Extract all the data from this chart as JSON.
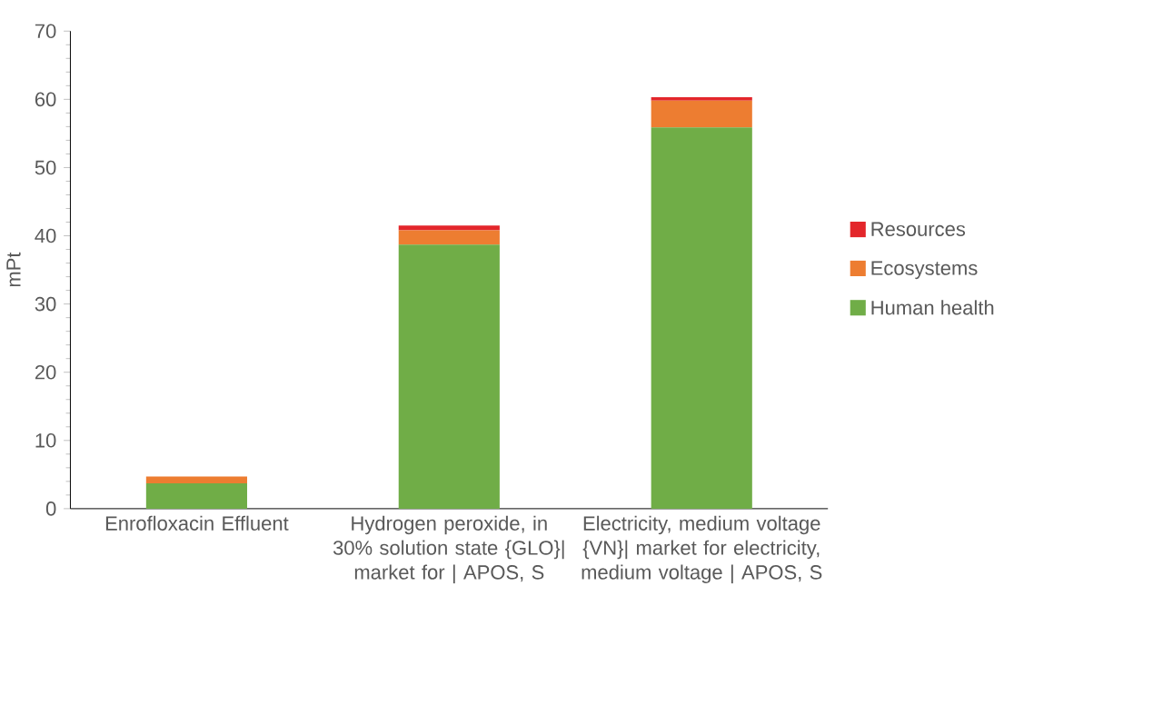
{
  "chart_data": {
    "type": "bar",
    "stacked": true,
    "ylabel": "mPt",
    "categories": [
      "Enrofloxacin Effluent",
      "Hydrogen peroxide, in 30% solution state {GLO}| market for | APOS, S",
      "Electricity, medium voltage {VN}| market for electricity, medium voltage | APOS, S"
    ],
    "series": [
      {
        "name": "Human health",
        "color": "#70ad47",
        "values": [
          3.7,
          38.7,
          55.9
        ]
      },
      {
        "name": "Ecosystems",
        "color": "#ed7d31",
        "values": [
          1.0,
          2.1,
          3.9
        ]
      },
      {
        "name": "Resources",
        "color": "#e3262b",
        "values": [
          0.0,
          0.7,
          0.5
        ]
      }
    ],
    "ylim": [
      0,
      70
    ],
    "yticks": [
      0,
      10,
      20,
      30,
      40,
      50,
      60,
      70
    ],
    "grid": false,
    "legend": "right"
  }
}
